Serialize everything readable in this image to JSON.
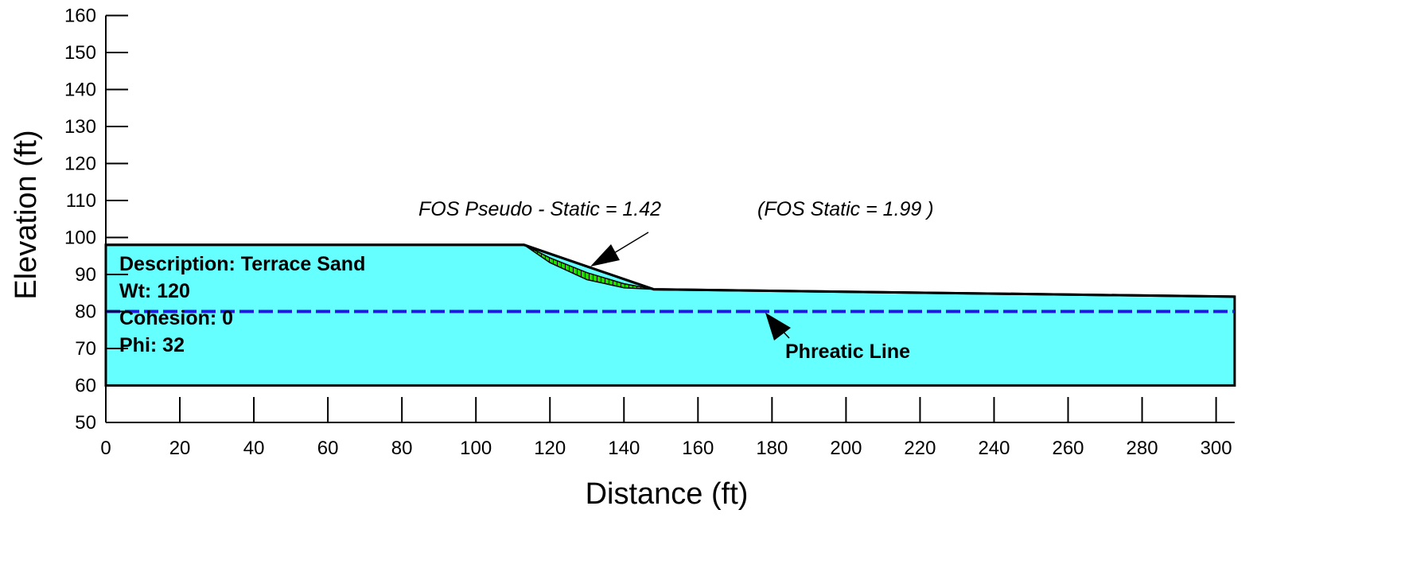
{
  "chart_data": {
    "type": "area",
    "title": "",
    "xlabel": "Distance (ft)",
    "ylabel": "Elevation (ft)",
    "xlim": [
      0,
      305
    ],
    "ylim": [
      50,
      160
    ],
    "xticks": [
      0,
      20,
      40,
      60,
      80,
      100,
      120,
      140,
      160,
      180,
      200,
      220,
      240,
      260,
      280,
      300
    ],
    "yticks": [
      50,
      60,
      70,
      80,
      90,
      100,
      110,
      120,
      130,
      140,
      150,
      160
    ],
    "grid": false,
    "slope_profile": {
      "x": [
        0,
        113,
        148,
        305,
        305,
        0
      ],
      "y": [
        98,
        98,
        86,
        84,
        60,
        60
      ],
      "fill_color": "#66ffff"
    },
    "failure_surface": {
      "x": [
        113,
        120,
        130,
        140,
        148,
        140,
        130,
        120,
        113
      ],
      "y": [
        98,
        94.5,
        90.5,
        87.5,
        86,
        86.4,
        88.6,
        93.2,
        98
      ],
      "fill_color": "#22dd00"
    },
    "phreatic_line": {
      "x": [
        0,
        305
      ],
      "y": [
        80,
        80
      ],
      "color": "#1c1cdd"
    },
    "annotations": {
      "material": {
        "description": "Description: Terrace Sand",
        "wt": "Wt: 120",
        "cohesion": "Cohesion: 0",
        "phi": "Phi: 32"
      },
      "fos_pseudo_static": "FOS Pseudo - Static =  1.42",
      "fos_static": "(FOS Static = 1.99 )",
      "phreatic_label": "Phreatic Line"
    }
  }
}
